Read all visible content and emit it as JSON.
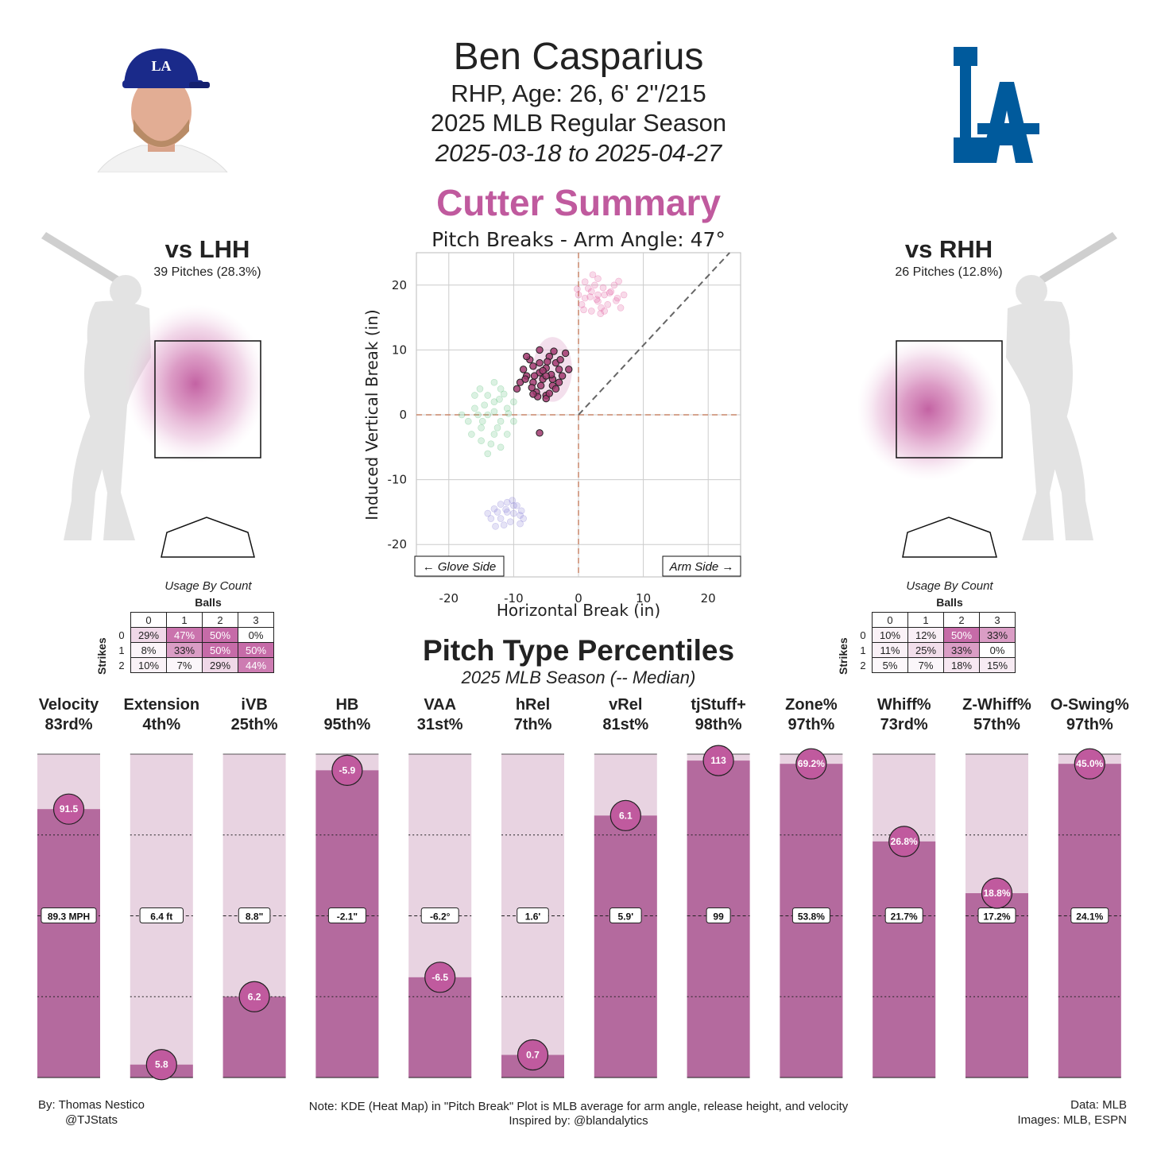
{
  "header": {
    "name": "Ben Casparius",
    "bio": "RHP, Age: 26, 6' 2\"/215",
    "season": "2025 MLB Regular Season",
    "dates": "2025-03-18 to 2025-04-27",
    "summary_title": "Cutter Summary",
    "team_logo": "LA"
  },
  "colors": {
    "accent": "#c05a9e",
    "bar_fill": "#b46a9e",
    "bar_bg": "#e8d3e1",
    "cutter": "#a0386f",
    "fourseam": "#e0569a",
    "sweeper": "#5cc07a",
    "splitter": "#8a7fd6",
    "team_blue": "#005a9c"
  },
  "icons": {
    "headshot": "player-headshot-icon",
    "logo": "dodgers-la-logo-icon",
    "batter": "batter-silhouette-icon",
    "plate": "home-plate-icon"
  },
  "lhh": {
    "title": "vs LHH",
    "subtitle": "39 Pitches (28.3%)",
    "usage_title": "Usage By Count",
    "balls_label": "Balls",
    "strikes_label": "Strikes",
    "ball_headers": [
      "0",
      "1",
      "2",
      "3"
    ],
    "strike_headers": [
      "0",
      "1",
      "2"
    ],
    "rows": [
      [
        "29%",
        "47%",
        "50%",
        "0%"
      ],
      [
        "8%",
        "33%",
        "50%",
        "50%"
      ],
      [
        "10%",
        "7%",
        "29%",
        "44%"
      ]
    ],
    "levels": [
      [
        0.29,
        0.47,
        0.5,
        0.0
      ],
      [
        0.08,
        0.33,
        0.5,
        0.5
      ],
      [
        0.1,
        0.07,
        0.29,
        0.44
      ]
    ]
  },
  "rhh": {
    "title": "vs RHH",
    "subtitle": "26 Pitches (12.8%)",
    "usage_title": "Usage By Count",
    "balls_label": "Balls",
    "strikes_label": "Strikes",
    "ball_headers": [
      "0",
      "1",
      "2",
      "3"
    ],
    "strike_headers": [
      "0",
      "1",
      "2"
    ],
    "rows": [
      [
        "10%",
        "12%",
        "50%",
        "33%"
      ],
      [
        "11%",
        "25%",
        "33%",
        "0%"
      ],
      [
        "5%",
        "7%",
        "18%",
        "15%"
      ]
    ],
    "levels": [
      [
        0.1,
        0.12,
        0.5,
        0.33
      ],
      [
        0.11,
        0.25,
        0.33,
        0.0
      ],
      [
        0.05,
        0.07,
        0.18,
        0.15
      ]
    ]
  },
  "chart_data": [
    {
      "type": "scatter",
      "title": "Pitch Breaks - Arm Angle: 47°",
      "xlabel": "Horizontal Break (in)",
      "ylabel": "Induced Vertical Break (in)",
      "xlim": [
        -25,
        25
      ],
      "ylim": [
        -25,
        25
      ],
      "xticks": [
        -20,
        -10,
        0,
        10,
        20
      ],
      "yticks": [
        -20,
        -10,
        0,
        10,
        20
      ],
      "grid": true,
      "arm_angle_deg": 47,
      "annotations": [
        "← Glove Side",
        "Arm Side →"
      ],
      "series": [
        {
          "values": [
            [
              -6,
              6.5
            ],
            [
              -5,
              7.2
            ],
            [
              -3.5,
              8
            ],
            [
              -7,
              5
            ],
            [
              -8,
              6
            ],
            [
              -4,
              4.5
            ],
            [
              -6.5,
              3.5
            ],
            [
              -5.5,
              5.5
            ],
            [
              -2.5,
              6
            ],
            [
              -9,
              5
            ],
            [
              -4.5,
              9
            ],
            [
              -7.5,
              8.5
            ],
            [
              -3,
              7
            ],
            [
              -5,
              3
            ],
            [
              -6,
              8
            ],
            [
              -8.5,
              7
            ],
            [
              -2,
              9.5
            ],
            [
              -4,
              5.5
            ],
            [
              -7,
              7.5
            ],
            [
              -5,
              2.5
            ],
            [
              -9.5,
              4
            ],
            [
              -3.5,
              4
            ],
            [
              -6,
              10
            ],
            [
              -1.5,
              7
            ],
            [
              -8,
              9
            ],
            [
              -5.5,
              6.8
            ],
            [
              -4.2,
              6.2
            ],
            [
              -6.8,
              6
            ],
            [
              -3,
              5
            ],
            [
              -7.2,
              4.2
            ],
            [
              -4.8,
              8.2
            ],
            [
              -5.8,
              4.5
            ],
            [
              -2.8,
              8.5
            ],
            [
              -8.2,
              5.5
            ],
            [
              -6.3,
              2.8
            ],
            [
              -4.5,
              3.3
            ],
            [
              -3.8,
              9.8
            ],
            [
              -6,
              -2.8
            ],
            [
              -5,
              6
            ],
            [
              -7,
              3.2
            ]
          ]
        },
        {
          "values": [
            [
              1,
              18
            ],
            [
              2,
              19
            ],
            [
              3,
              17.5
            ],
            [
              4,
              18.5
            ],
            [
              2.5,
              20
            ],
            [
              5,
              19
            ],
            [
              0.5,
              17
            ],
            [
              3.5,
              16.5
            ],
            [
              6,
              18
            ],
            [
              1.5,
              19.5
            ],
            [
              4.5,
              17
            ],
            [
              2,
              16
            ],
            [
              3,
              21
            ],
            [
              5.5,
              20
            ],
            [
              0,
              18.5
            ],
            [
              7,
              18.5
            ],
            [
              3,
              18.5
            ],
            [
              1,
              20.5
            ],
            [
              4,
              16
            ],
            [
              6.5,
              16.5
            ],
            [
              2.8,
              17.8
            ],
            [
              3.8,
              19.6
            ],
            [
              1.8,
              18.2
            ],
            [
              4.8,
              18.8
            ],
            [
              0.8,
              16.2
            ],
            [
              5.8,
              17.6
            ],
            [
              2.2,
              21.6
            ],
            [
              6.2,
              20.6
            ],
            [
              3.4,
              15.6
            ],
            [
              -0.2,
              19.4
            ]
          ]
        },
        {
          "values": [
            [
              -14,
              0
            ],
            [
              -13,
              2
            ],
            [
              -12,
              -1
            ],
            [
              -15,
              -2
            ],
            [
              -11,
              1
            ],
            [
              -16,
              1
            ],
            [
              -13,
              -3
            ],
            [
              -12,
              4
            ],
            [
              -14,
              3
            ],
            [
              -10,
              -1
            ],
            [
              -17,
              -1
            ],
            [
              -15,
              -4
            ],
            [
              -11,
              -3
            ],
            [
              -13,
              5
            ],
            [
              -16,
              3
            ],
            [
              -12,
              -5
            ],
            [
              -14,
              -6
            ],
            [
              -10,
              2
            ],
            [
              -18,
              0
            ],
            [
              -13,
              0.5
            ],
            [
              -14.5,
              1.5
            ],
            [
              -12.5,
              -2
            ],
            [
              -15.5,
              0
            ],
            [
              -11.5,
              3.2
            ],
            [
              -16.5,
              -3
            ],
            [
              -13.5,
              -4.5
            ],
            [
              -12.2,
              2.4
            ],
            [
              -14.8,
              -1
            ],
            [
              -10.8,
              0.2
            ],
            [
              -15.2,
              4
            ]
          ]
        },
        {
          "values": [
            [
              -11,
              -15
            ],
            [
              -10,
              -14
            ],
            [
              -12,
              -16
            ],
            [
              -9,
              -15.5
            ],
            [
              -13,
              -14.5
            ],
            [
              -11,
              -13.5
            ],
            [
              -10.5,
              -16.5
            ],
            [
              -12.5,
              -15
            ],
            [
              -9.5,
              -14
            ],
            [
              -8.5,
              -16
            ],
            [
              -11.5,
              -17
            ],
            [
              -13.5,
              -16
            ],
            [
              -10,
              -15.2
            ],
            [
              -12,
              -13.8
            ],
            [
              -9,
              -16.8
            ],
            [
              -14,
              -15.2
            ],
            [
              -11.2,
              -14.6
            ],
            [
              -8.8,
              -14.8
            ],
            [
              -12.8,
              -17.2
            ],
            [
              -10.2,
              -13.2
            ]
          ]
        }
      ],
      "avg_reference_region": {
        "x": [
          -7,
          -1
        ],
        "y": [
          2,
          12
        ]
      }
    },
    {
      "type": "bar",
      "categories": [
        "Velocity",
        "Extension",
        "iVB",
        "HB",
        "VAA",
        "hRel",
        "vRel",
        "tjStuff+",
        "Zone%",
        "Whiff%",
        "Z-Whiff%",
        "O-Swing%"
      ],
      "percentile_labels": [
        "83rd%",
        "4th%",
        "25th%",
        "95th%",
        "31st%",
        "7th%",
        "81st%",
        "98th%",
        "97th%",
        "73rd%",
        "57th%",
        "97th%"
      ],
      "values": [
        83,
        4,
        25,
        95,
        31,
        7,
        81,
        98,
        97,
        73,
        57,
        97
      ],
      "player_values": [
        "91.5",
        "5.8",
        "6.2",
        "-5.9",
        "-6.5",
        "0.7",
        "6.1",
        "113",
        "69.2%",
        "26.8%",
        "18.8%",
        "45.0%"
      ],
      "median_values": [
        "89.3 MPH",
        "6.4 ft",
        "8.8\"",
        "-2.1\"",
        "-6.2°",
        "1.6'",
        "5.9'",
        "99",
        "53.8%",
        "21.7%",
        "17.2%",
        "24.1%"
      ],
      "title": "Pitch Type Percentiles",
      "subtitle": "2025 MLB Season (-- Median)",
      "ylim": [
        0,
        100
      ],
      "gridlines": [
        25,
        50,
        75
      ]
    }
  ],
  "footer": {
    "left_1": "By: Thomas Nestico",
    "left_2": "@TJStats",
    "center_1": "Note: KDE (Heat Map) in \"Pitch Break\" Plot is MLB average for arm angle, release height, and velocity",
    "center_2": "Inspired by: @blandalytics",
    "right_1": "Data: MLB",
    "right_2": "Images: MLB, ESPN"
  }
}
